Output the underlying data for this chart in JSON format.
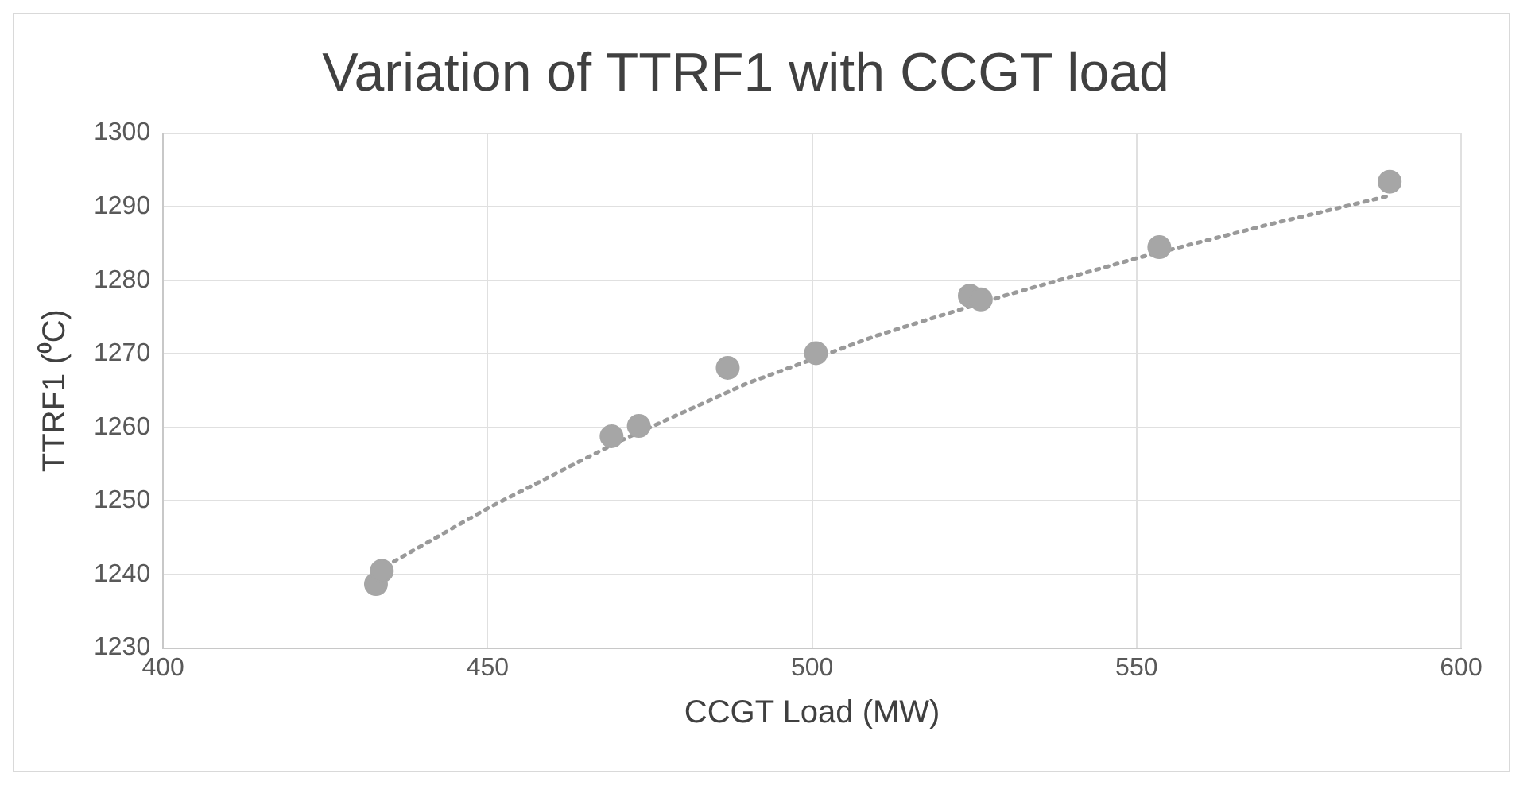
{
  "chart_data": {
    "type": "scatter",
    "title": "Variation of TTRF1 with CCGT load",
    "xlabel": "CCGT Load (MW)",
    "ylabel": "TTRF1 (⁰C)",
    "xlim": [
      400,
      600
    ],
    "xticks": [
      400,
      450,
      500,
      550,
      600
    ],
    "ylim": [
      1230,
      1300
    ],
    "yticks": [
      1230,
      1240,
      1250,
      1260,
      1270,
      1280,
      1290,
      1300
    ],
    "grid": true,
    "legend": false,
    "series": [
      {
        "type": "scatter",
        "color": "#a6a6a6",
        "marker": "circle",
        "x": [
          432.8,
          433.7,
          469.1,
          473.3,
          487.0,
          500.6,
          524.3,
          526.0,
          553.5,
          589.0
        ],
        "values": [
          1238.7,
          1240.5,
          1258.8,
          1260.2,
          1268.1,
          1270.1,
          1277.9,
          1277.4,
          1284.5,
          1293.4
        ]
      },
      {
        "type": "line",
        "color": "#9a9a9a",
        "line_style": "dotted",
        "marker": "none",
        "x": [
          433,
          450,
          470,
          490,
          510,
          530,
          550,
          570,
          589
        ],
        "values": [
          1240.5,
          1249,
          1258,
          1266,
          1272.5,
          1278,
          1283,
          1287.5,
          1291.5
        ]
      }
    ]
  }
}
